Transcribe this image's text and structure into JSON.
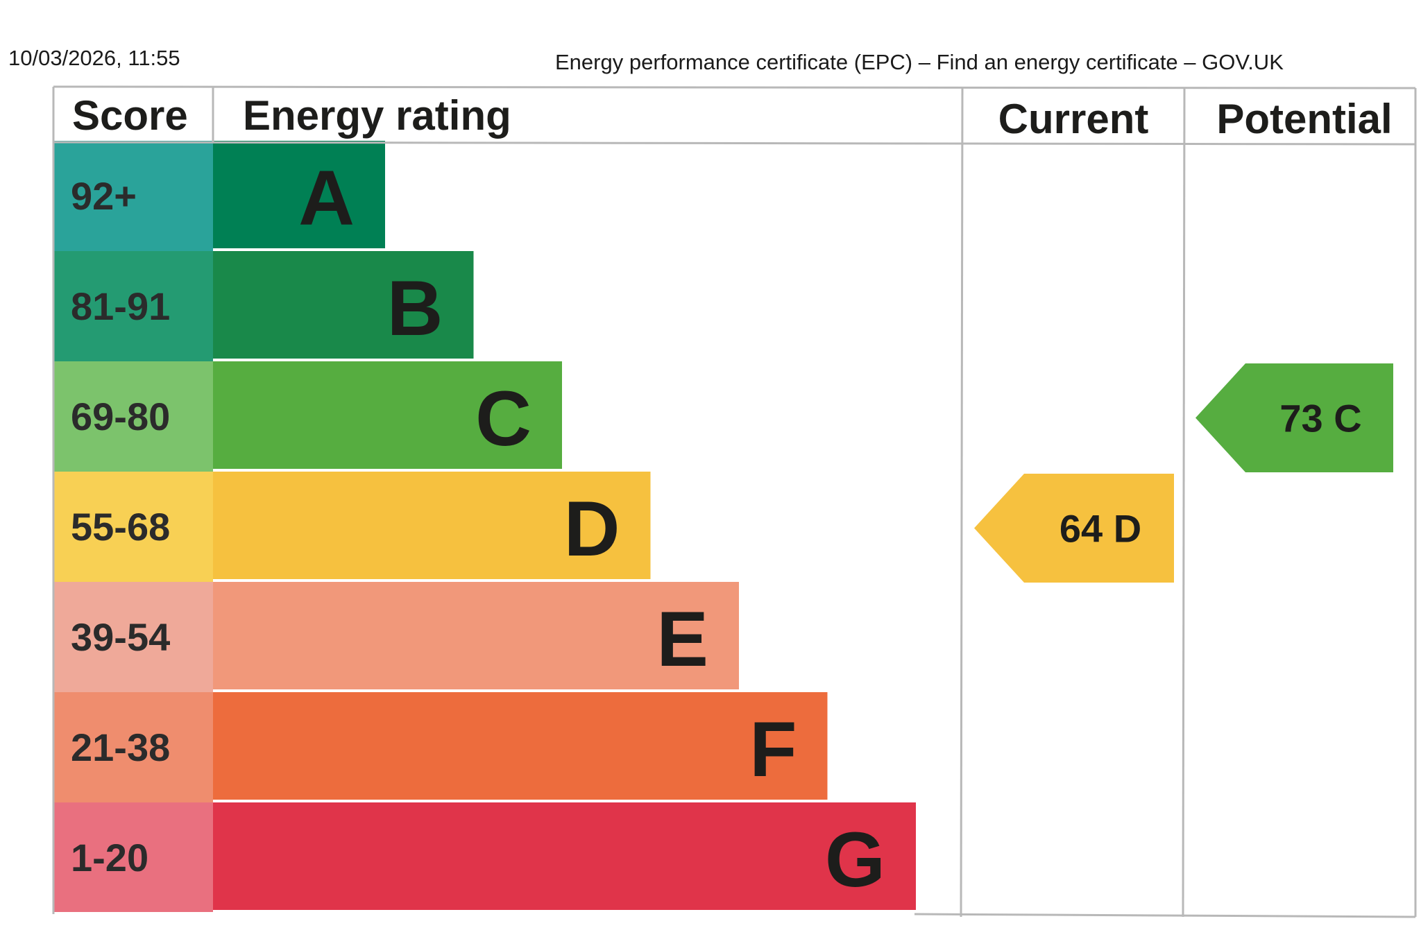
{
  "page": {
    "timestamp": "10/03/2026, 11:55",
    "title": "Energy performance certificate (EPC) – Find an energy certificate – GOV.UK"
  },
  "chart_data": {
    "type": "bar",
    "headers": {
      "score": "Score",
      "rating": "Energy rating",
      "current": "Current",
      "potential": "Potential"
    },
    "bands": [
      {
        "letter": "A",
        "score": "92+",
        "color": "#008054",
        "score_color": "#2aa39a"
      },
      {
        "letter": "B",
        "score": "81-91",
        "color": "#19894a",
        "score_color": "#249b72"
      },
      {
        "letter": "C",
        "score": "69-80",
        "color": "#56ad40",
        "score_color": "#7cc36c"
      },
      {
        "letter": "D",
        "score": "55-68",
        "color": "#f6c13f",
        "score_color": "#f8d054"
      },
      {
        "letter": "E",
        "score": "39-54",
        "color": "#f1987a",
        "score_color": "#efa999"
      },
      {
        "letter": "F",
        "score": "21-38",
        "color": "#ed6c3d",
        "score_color": "#ef8d6e"
      },
      {
        "letter": "G",
        "score": "1-20",
        "color": "#e0344a",
        "score_color": "#e9707f"
      }
    ],
    "current": {
      "value": 64,
      "band": "D",
      "label": "64  D",
      "color": "#f6c13f"
    },
    "potential": {
      "value": 73,
      "band": "C",
      "label": "73  C",
      "color": "#56ad40"
    }
  }
}
